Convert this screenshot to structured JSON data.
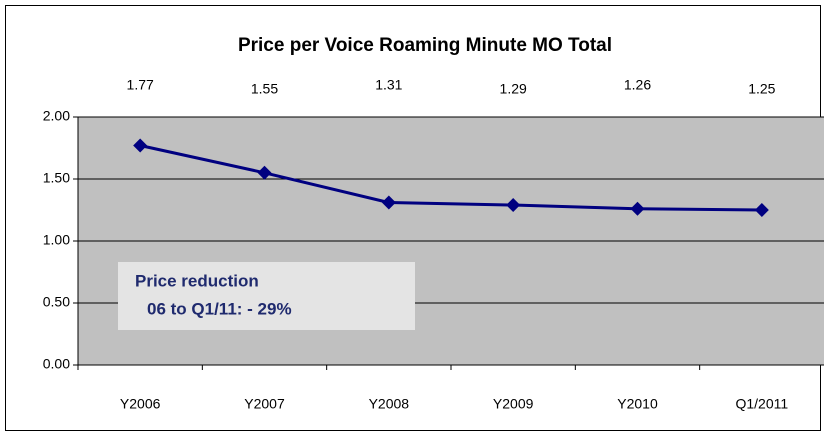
{
  "chart_data": {
    "type": "line",
    "title": "Price per Voice Roaming Minute MO Total",
    "categories": [
      "Y2006",
      "Y2007",
      "Y2008",
      "Y2009",
      "Y2010",
      "Q1/2011"
    ],
    "series": [
      {
        "name": "Price per Voice Roaming Minute MO Total",
        "color": "#000080",
        "values": [
          1.77,
          1.55,
          1.31,
          1.29,
          1.26,
          1.25
        ]
      }
    ],
    "ylim": [
      0,
      2
    ],
    "yticks": [
      {
        "value": 0,
        "label": "0.00"
      },
      {
        "value": 0.5,
        "label": "0.50"
      },
      {
        "value": 1,
        "label": "1.00"
      },
      {
        "value": 1.5,
        "label": "1.50"
      },
      {
        "value": 2,
        "label": "2.00"
      }
    ],
    "grid": true,
    "annotation": [
      "Price reduction",
      "06 to Q1/11: - 29%"
    ]
  }
}
